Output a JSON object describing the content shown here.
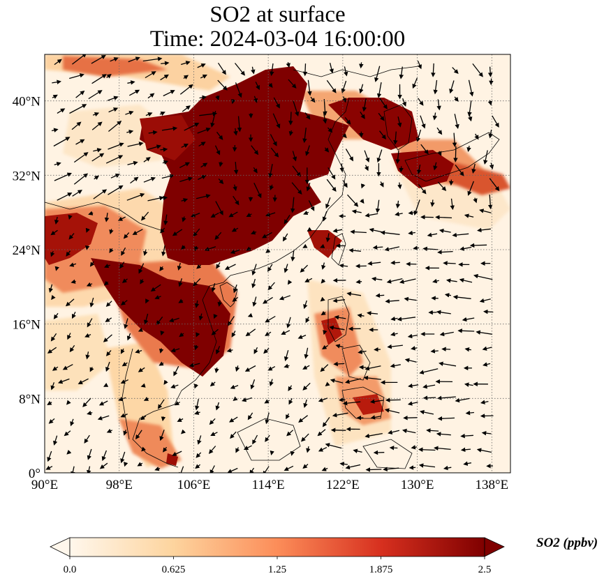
{
  "title": {
    "line1": "SO2 at surface",
    "line2": "Time: 2024-03-04 16:00:00"
  },
  "map": {
    "extent": {
      "lon": [
        90,
        140
      ],
      "lat": [
        0,
        45
      ]
    },
    "x_ticks": [
      {
        "value": 90,
        "label": "90°E"
      },
      {
        "value": 98,
        "label": "98°E"
      },
      {
        "value": 106,
        "label": "106°E"
      },
      {
        "value": 114,
        "label": "114°E"
      },
      {
        "value": 122,
        "label": "122°E"
      },
      {
        "value": 130,
        "label": "130°E"
      },
      {
        "value": 138,
        "label": "138°E"
      }
    ],
    "y_ticks": [
      {
        "value": 0,
        "label": "0°"
      },
      {
        "value": 8,
        "label": "8°N"
      },
      {
        "value": 16,
        "label": "16°N"
      },
      {
        "value": 24,
        "label": "24°N"
      },
      {
        "value": 32,
        "label": "32°N"
      },
      {
        "value": 40,
        "label": "40°N"
      }
    ],
    "gridlines": true
  },
  "colorbar": {
    "label": "SO2 (ppbv)",
    "min": 0.0,
    "max": 2.5,
    "extend": "both",
    "colors": [
      "#fff7ec",
      "#fdd49e",
      "#fc8d59",
      "#d7301f",
      "#7f0000"
    ],
    "ticks": [
      {
        "value": 0.0,
        "label": "0.0"
      },
      {
        "value": 0.625,
        "label": "0.625"
      },
      {
        "value": 1.25,
        "label": "1.25"
      },
      {
        "value": 1.875,
        "label": "1.875"
      },
      {
        "value": 2.5,
        "label": "2.5"
      }
    ]
  }
}
